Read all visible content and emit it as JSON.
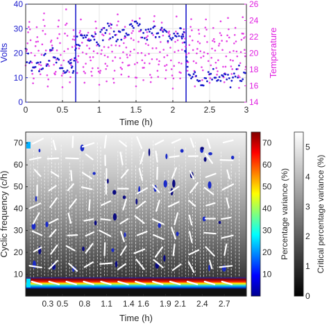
{
  "colors": {
    "volts": "#1a1acc",
    "temperature": "#e020e0",
    "marker_line": "#1a1acc",
    "axis": "#262626"
  },
  "chart_data": [
    {
      "type": "scatter",
      "xlabel": "Time (h)",
      "ylabel_left": "Volts",
      "ylabel_right": "Temperature",
      "xlim": [
        0,
        3
      ],
      "ylim_left": [
        0,
        40
      ],
      "ylim_right": [
        14,
        26
      ],
      "xticks": [
        "0",
        "0.5",
        "1",
        "1.5",
        "2",
        "2.5",
        "3"
      ],
      "yticks_left": [
        "0",
        "10",
        "20",
        "30",
        "40"
      ],
      "yticks_right": [
        "14",
        "16",
        "18",
        "20",
        "22",
        "24",
        "26"
      ],
      "grid": true,
      "vertical_markers": [
        0.68,
        2.18
      ],
      "series": [
        {
          "axis": "left",
          "x": [
            0.0,
            0.1,
            0.2,
            0.3,
            0.4,
            0.5,
            0.6,
            0.65,
            0.7,
            0.8,
            0.9,
            1.0,
            1.1,
            1.2,
            1.3,
            1.4,
            1.5,
            1.6,
            1.7,
            1.8,
            1.9,
            2.0,
            2.1,
            2.15,
            2.2,
            2.3,
            2.4,
            2.5,
            2.6,
            2.7,
            2.8,
            2.9,
            3.0
          ],
          "values": [
            20,
            12,
            15,
            18,
            20,
            14,
            16,
            12,
            25,
            27,
            28,
            26,
            30,
            28,
            27,
            29,
            31,
            27,
            28,
            30,
            27,
            26,
            29,
            26,
            14,
            10,
            9,
            12,
            11,
            10,
            8,
            12,
            9
          ]
        },
        {
          "axis": "right",
          "x": [
            0.0,
            0.05,
            0.1,
            0.15,
            0.2,
            0.25,
            0.3,
            0.35,
            0.4,
            0.45,
            0.5,
            0.55,
            0.6,
            0.65,
            0.7,
            0.75,
            0.8,
            0.85,
            0.9,
            0.95,
            1.0,
            1.05,
            1.1,
            1.15,
            1.2,
            1.25,
            1.3,
            1.35,
            1.4,
            1.45,
            1.5,
            1.55,
            1.6,
            1.65,
            1.7,
            1.75,
            1.8,
            1.85,
            1.9,
            1.95,
            2.0,
            2.05,
            2.1,
            2.15,
            2.2,
            2.25,
            2.3,
            2.35,
            2.4,
            2.45,
            2.5,
            2.55,
            2.6,
            2.65,
            2.7,
            2.75,
            2.8,
            2.85,
            2.9,
            2.95,
            3.0
          ],
          "values": [
            19,
            24,
            16,
            23,
            17,
            25,
            16,
            22,
            17,
            24,
            16,
            25,
            16,
            23,
            18,
            24,
            16,
            23,
            17,
            24,
            16,
            23,
            17,
            24,
            16,
            25,
            17,
            23,
            17,
            24,
            16,
            24,
            17,
            23,
            16,
            25,
            17,
            24,
            17,
            23,
            16,
            24,
            17,
            23,
            18,
            24,
            16,
            23,
            17,
            24,
            16,
            23,
            17,
            24,
            16,
            24,
            17,
            23,
            16,
            24,
            17
          ]
        }
      ]
    },
    {
      "type": "heatmap",
      "xlabel": "Time (h)",
      "ylabel": "Cyclic frequency (c/h)",
      "xlim": [
        0,
        3
      ],
      "ylim": [
        0,
        75
      ],
      "xticks": [
        "0.3",
        "0.5",
        "0.8",
        "1.1",
        "1.4",
        "1.6",
        "1.9",
        "2.1",
        "2.4",
        "2.7"
      ],
      "yticks": [
        "10",
        "20",
        "30",
        "40",
        "50",
        "60",
        "70"
      ],
      "dominant_band_frequency": 6,
      "colorbar_left": {
        "label": "Percentage variance (%)",
        "ticks": [
          "10",
          "20",
          "30",
          "40",
          "50",
          "60",
          "70"
        ],
        "range": [
          0,
          75
        ],
        "colormap": "jet"
      },
      "colorbar_right": {
        "label": "Critical percentage variance (%)",
        "ticks": [
          "0",
          "1",
          "2",
          "3",
          "4",
          "5"
        ],
        "range": [
          0,
          5.5
        ],
        "colormap": "gray"
      }
    }
  ]
}
